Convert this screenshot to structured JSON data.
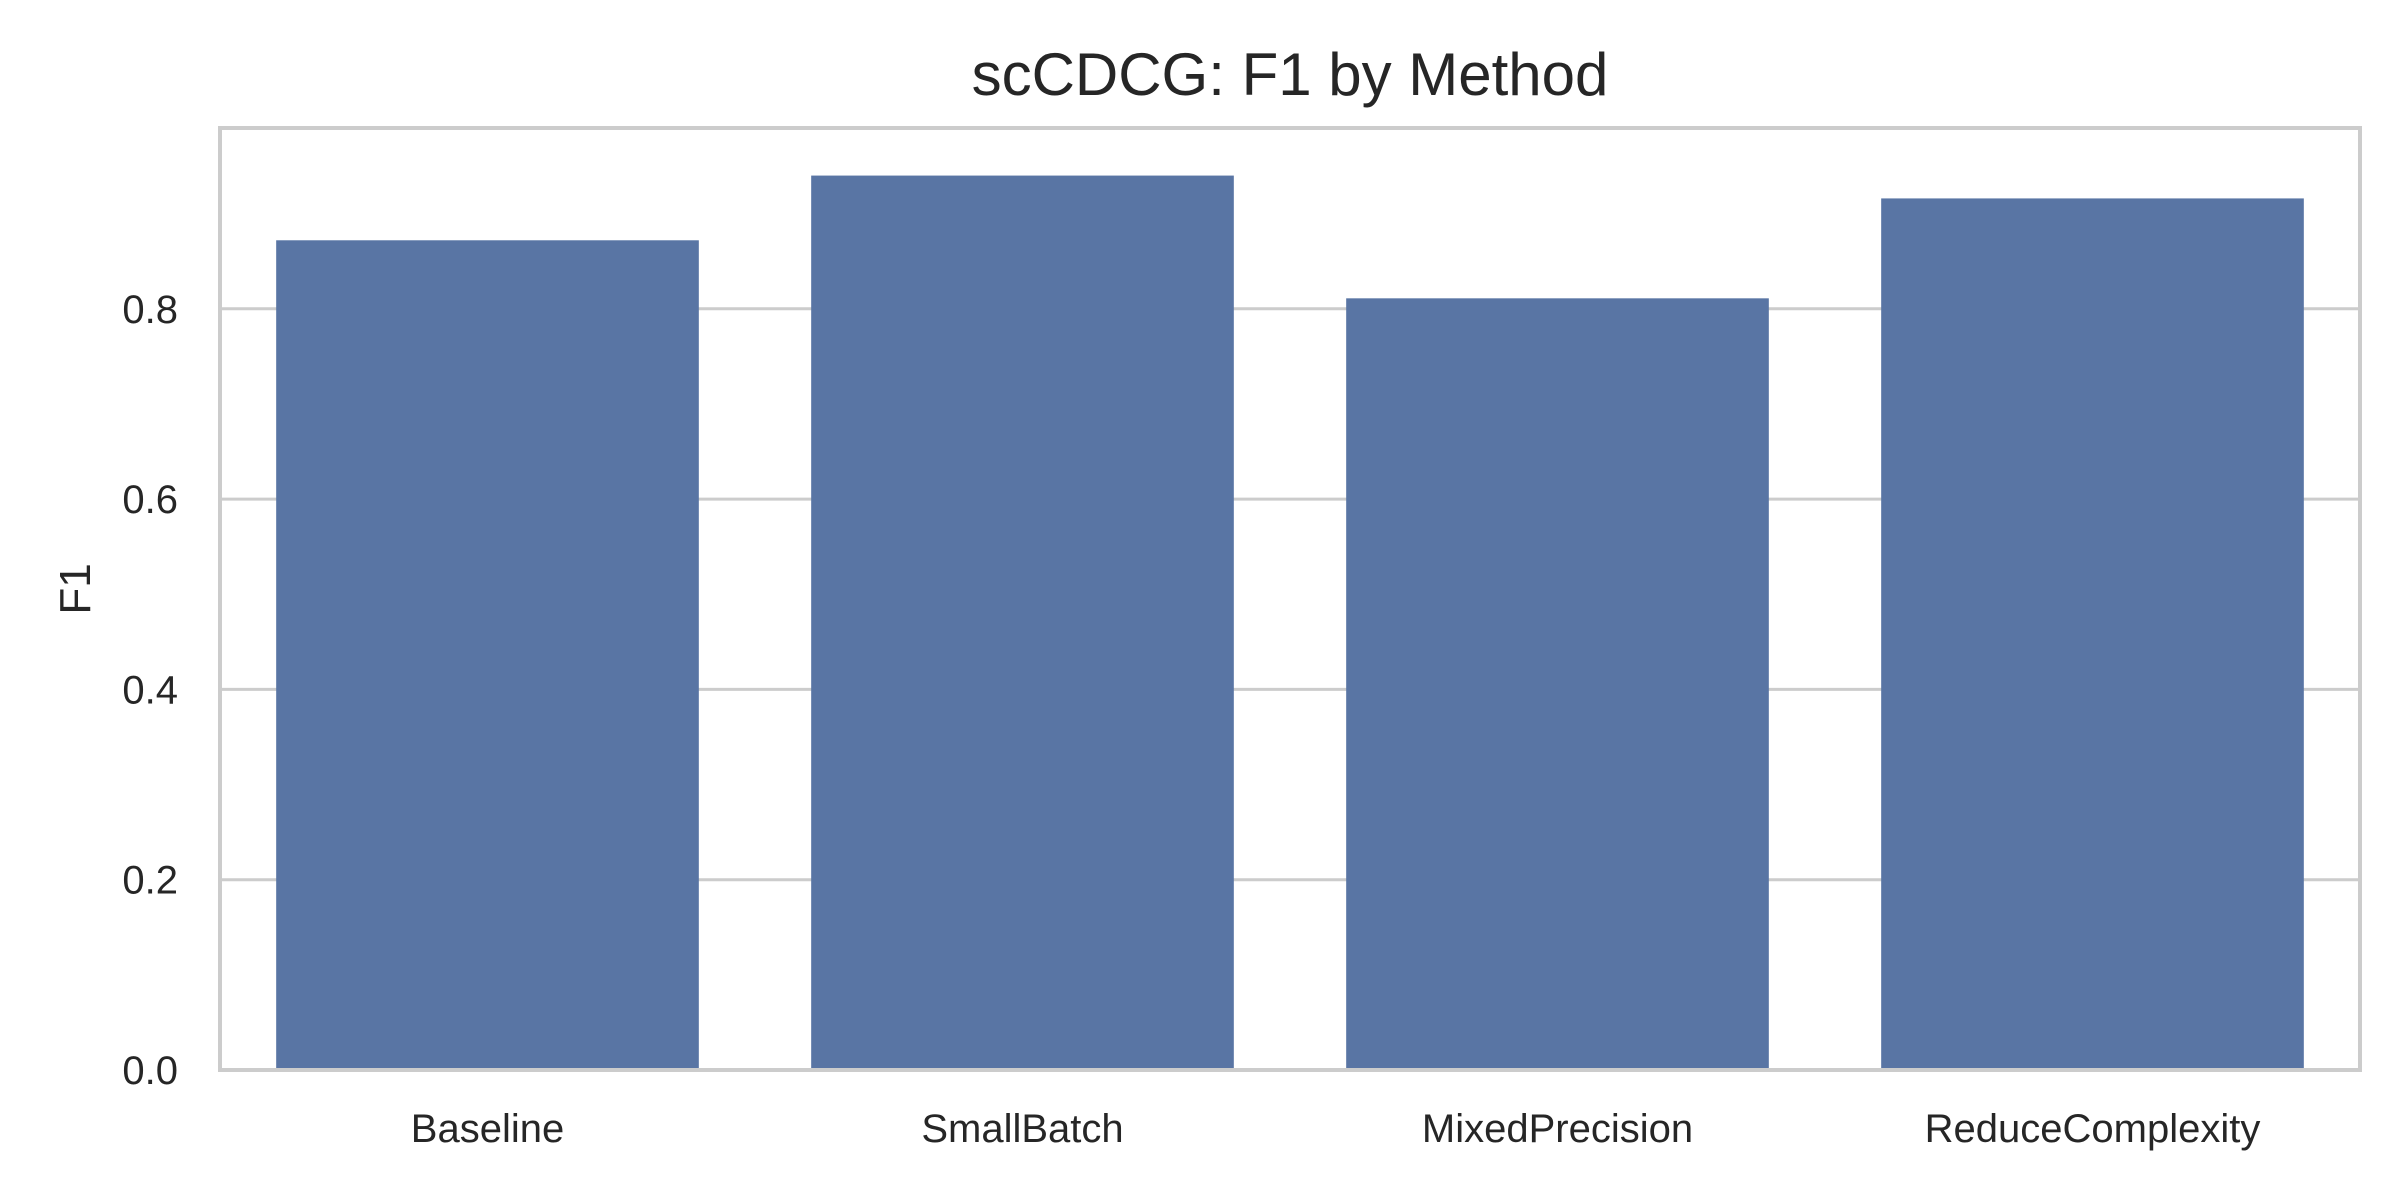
{
  "chart_data": {
    "type": "bar",
    "title": "scCDCG: F1 by Method",
    "xlabel": "",
    "ylabel": "F1",
    "categories": [
      "Baseline",
      "SmallBatch",
      "MixedPrecision",
      "ReduceComplexity"
    ],
    "series": [
      {
        "values": [
          0.872,
          0.94,
          0.811,
          0.916
        ]
      }
    ],
    "ylim": [
      0,
      0.99
    ],
    "yticks": [
      0.0,
      0.2,
      0.4,
      0.6,
      0.8
    ],
    "ytick_labels": [
      "0.0",
      "0.2",
      "0.4",
      "0.6",
      "0.8"
    ],
    "grid": "horizontal",
    "legend": "none",
    "colors": {
      "bar": "#5975a4",
      "grid": "#cccccc",
      "spine": "#cccccc",
      "text": "#262626",
      "background": "#ffffff"
    }
  }
}
